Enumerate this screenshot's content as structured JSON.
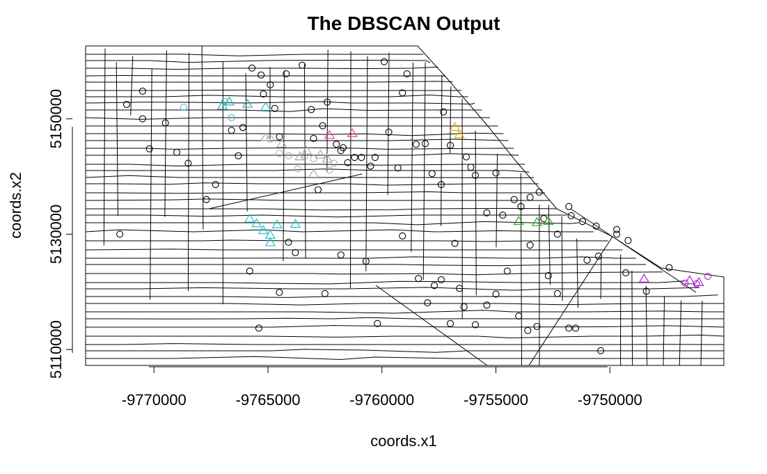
{
  "chart_data": {
    "type": "scatter",
    "title": "The DBSCAN Output",
    "xlabel": "coords.x1",
    "ylabel": "coords.x2",
    "xlim": [
      -9773000,
      -9745000
    ],
    "ylim": [
      5107000,
      5163000
    ],
    "xticks": [
      -9770000,
      -9765000,
      -9760000,
      -9755000,
      -9750000
    ],
    "xtick_labels": [
      "-9770000",
      "-9765000",
      "-9760000",
      "-9755000",
      "-9750000"
    ],
    "yticks": [
      5110000,
      5130000,
      5150000
    ],
    "ytick_labels": [
      "5110000",
      "5130000",
      "5150000"
    ],
    "series": [
      {
        "color": "#000000",
        "marker": "circle",
        "points": [
          [
            -9771200,
            5152500
          ],
          [
            -9770500,
            5154800
          ],
          [
            -9770500,
            5150000
          ],
          [
            -9770200,
            5144800
          ],
          [
            -9769500,
            5149300
          ],
          [
            -9769000,
            5144200
          ],
          [
            -9768500,
            5142300
          ],
          [
            -9767700,
            5136000
          ],
          [
            -9766600,
            5148000
          ],
          [
            -9766300,
            5143600
          ],
          [
            -9766100,
            5148500
          ],
          [
            -9765700,
            5158800
          ],
          [
            -9765300,
            5157600
          ],
          [
            -9765200,
            5154300
          ],
          [
            -9764900,
            5155900
          ],
          [
            -9764700,
            5151800
          ],
          [
            -9764200,
            5157800
          ],
          [
            -9763500,
            5159300
          ],
          [
            -9763100,
            5151600
          ],
          [
            -9763000,
            5146600
          ],
          [
            -9762600,
            5148800
          ],
          [
            -9762400,
            5152900
          ],
          [
            -9762000,
            5145600
          ],
          [
            -9761800,
            5144500
          ],
          [
            -9761500,
            5142400
          ],
          [
            -9761200,
            5143300
          ],
          [
            -9760900,
            5143300
          ],
          [
            -9760500,
            5141800
          ],
          [
            -9760300,
            5143300
          ],
          [
            -9759900,
            5159900
          ],
          [
            -9759700,
            5147700
          ],
          [
            -9759300,
            5141500
          ],
          [
            -9759100,
            5154500
          ],
          [
            -9758900,
            5157800
          ],
          [
            -9758500,
            5145600
          ],
          [
            -9758100,
            5145700
          ],
          [
            -9757800,
            5140500
          ],
          [
            -9757400,
            5138600
          ],
          [
            -9757300,
            5151200
          ],
          [
            -9757000,
            5145400
          ],
          [
            -9756300,
            5143400
          ],
          [
            -9756100,
            5141600
          ],
          [
            -9755900,
            5140200
          ],
          [
            -9755400,
            5133700
          ],
          [
            -9755000,
            5140600
          ],
          [
            -9754700,
            5133300
          ],
          [
            -9754200,
            5136000
          ],
          [
            -9753900,
            5134800
          ],
          [
            -9753500,
            5136400
          ],
          [
            -9753100,
            5137300
          ],
          [
            -9752900,
            5132700
          ],
          [
            -9752300,
            5130000
          ],
          [
            -9751800,
            5134800
          ],
          [
            -9751700,
            5133200
          ],
          [
            -9751200,
            5132200
          ],
          [
            -9750600,
            5131400
          ],
          [
            -9749700,
            5130000
          ],
          [
            -9749200,
            5128900
          ],
          [
            -9771500,
            5130000
          ],
          [
            -9765800,
            5123600
          ],
          [
            -9764100,
            5128600
          ],
          [
            -9762500,
            5119700
          ],
          [
            -9761800,
            5126400
          ],
          [
            -9760700,
            5125300
          ],
          [
            -9760200,
            5114500
          ],
          [
            -9759100,
            5129700
          ],
          [
            -9758400,
            5122300
          ],
          [
            -9758000,
            5118100
          ],
          [
            -9757700,
            5121100
          ],
          [
            -9757400,
            5122100
          ],
          [
            -9757000,
            5114500
          ],
          [
            -9756600,
            5120600
          ],
          [
            -9756400,
            5117400
          ],
          [
            -9755900,
            5114300
          ],
          [
            -9755400,
            5117700
          ],
          [
            -9755000,
            5119600
          ],
          [
            -9754500,
            5123600
          ],
          [
            -9754000,
            5115800
          ],
          [
            -9753600,
            5113300
          ],
          [
            -9753200,
            5114000
          ],
          [
            -9752700,
            5122800
          ],
          [
            -9752300,
            5119700
          ],
          [
            -9751800,
            5113700
          ],
          [
            -9751500,
            5113700
          ],
          [
            -9751000,
            5125500
          ],
          [
            -9750500,
            5126200
          ],
          [
            -9749700,
            5130800
          ],
          [
            -9749300,
            5123300
          ],
          [
            -9748400,
            5120100
          ],
          [
            -9747400,
            5124200
          ],
          [
            -9765400,
            5113700
          ],
          [
            -9764500,
            5119900
          ],
          [
            -9763800,
            5126800
          ],
          [
            -9767300,
            5138600
          ],
          [
            -9764500,
            5146900
          ],
          [
            -9761700,
            5145000
          ],
          [
            -9750400,
            5109800
          ],
          [
            -9753500,
            5128100
          ],
          [
            -9756800,
            5128400
          ],
          [
            -9762800,
            5137700
          ]
        ]
      },
      {
        "color": "#5ab4d6",
        "marker": "circle",
        "points": [
          [
            -9768700,
            5152000
          ],
          [
            -9766600,
            5150200
          ],
          [
            -9766900,
            5153000
          ]
        ]
      },
      {
        "color": "#2bb3b3",
        "marker": "triangle",
        "points": [
          [
            -9767000,
            5152200
          ],
          [
            -9766700,
            5152900
          ],
          [
            -9765900,
            5152500
          ],
          [
            -9765100,
            5152000
          ]
        ]
      },
      {
        "color": "#aaaaaa",
        "marker": "circle",
        "points": [
          [
            -9764900,
            5146500
          ],
          [
            -9764500,
            5144000
          ],
          [
            -9764100,
            5143600
          ],
          [
            -9763700,
            5141300
          ],
          [
            -9763400,
            5143400
          ],
          [
            -9763000,
            5143100
          ],
          [
            -9762300,
            5141100
          ],
          [
            -9762100,
            5142300
          ]
        ]
      },
      {
        "color": "#aaaaaa",
        "marker": "triangle",
        "points": [
          [
            -9765100,
            5146700
          ],
          [
            -9764400,
            5145600
          ],
          [
            -9763600,
            5143400
          ],
          [
            -9763300,
            5144400
          ],
          [
            -9762700,
            5143700
          ],
          [
            -9762400,
            5143000
          ],
          [
            -9763000,
            5140400
          ]
        ]
      },
      {
        "color": "#22c2d6",
        "marker": "triangle",
        "points": [
          [
            -9765800,
            5132600
          ],
          [
            -9765500,
            5131800
          ],
          [
            -9765200,
            5130600
          ],
          [
            -9764900,
            5129800
          ],
          [
            -9764600,
            5131600
          ],
          [
            -9763800,
            5131700
          ],
          [
            -9764900,
            5128500
          ]
        ]
      },
      {
        "color": "#e6409e",
        "marker": "triangle",
        "points": [
          [
            -9762300,
            5147100
          ],
          [
            -9761300,
            5147400
          ]
        ]
      },
      {
        "color": "#e6a800",
        "marker": "triangle",
        "points": [
          [
            -9756800,
            5148500
          ],
          [
            -9756600,
            5147200
          ]
        ]
      },
      {
        "color": "#22aa22",
        "marker": "triangle",
        "points": [
          [
            -9754000,
            5132200
          ],
          [
            -9753200,
            5132000
          ],
          [
            -9752700,
            5132200
          ]
        ]
      },
      {
        "color": "#aa22cc",
        "marker": "triangle",
        "points": [
          [
            -9748500,
            5122200
          ],
          [
            -9746500,
            5121900
          ],
          [
            -9746100,
            5121600
          ]
        ]
      },
      {
        "color": "#aa22cc",
        "marker": "circle",
        "points": [
          [
            -9746700,
            5121500
          ],
          [
            -9746200,
            5121400
          ],
          [
            -9745700,
            5122700
          ]
        ]
      }
    ]
  }
}
